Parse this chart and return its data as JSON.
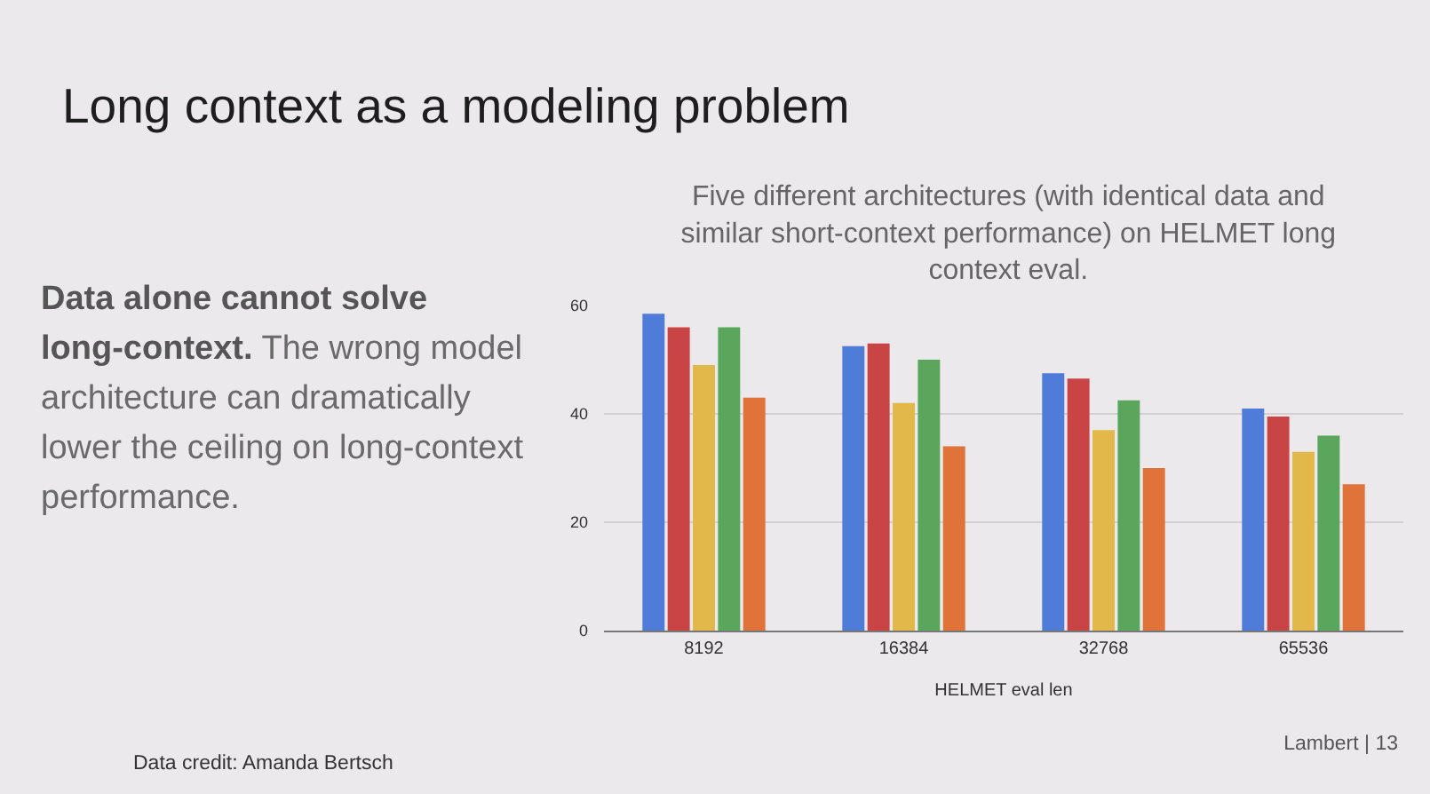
{
  "chart_data": {
    "type": "bar",
    "title": "Long context as a modeling problem",
    "subtitle": "Five different architectures (with identical data and similar short-context performance) on HELMET long context eval.",
    "xlabel": "HELMET eval len",
    "categories": [
      "8192",
      "16384",
      "32768",
      "65536"
    ],
    "series": [
      {
        "color": "#4f7bd9",
        "values": [
          58.5,
          52.5,
          47.5,
          41
        ]
      },
      {
        "color": "#c94545",
        "values": [
          56,
          53,
          46.5,
          39.5
        ]
      },
      {
        "color": "#e3b84b",
        "values": [
          49,
          42,
          37,
          33
        ]
      },
      {
        "color": "#5aa65c",
        "values": [
          56,
          50,
          42.5,
          36
        ]
      },
      {
        "color": "#e0733a",
        "values": [
          43,
          34,
          30,
          27
        ]
      }
    ],
    "ylim": [
      0,
      60
    ],
    "yticks": [
      0,
      20,
      40,
      60
    ],
    "grid": "y",
    "annotations": [
      "Data alone cannot solve long-context.",
      "The wrong model architecture can dramatically lower the ceiling on long-context performance.",
      "Data credit: Amanda Bertsch",
      "Lambert | 13"
    ]
  }
}
